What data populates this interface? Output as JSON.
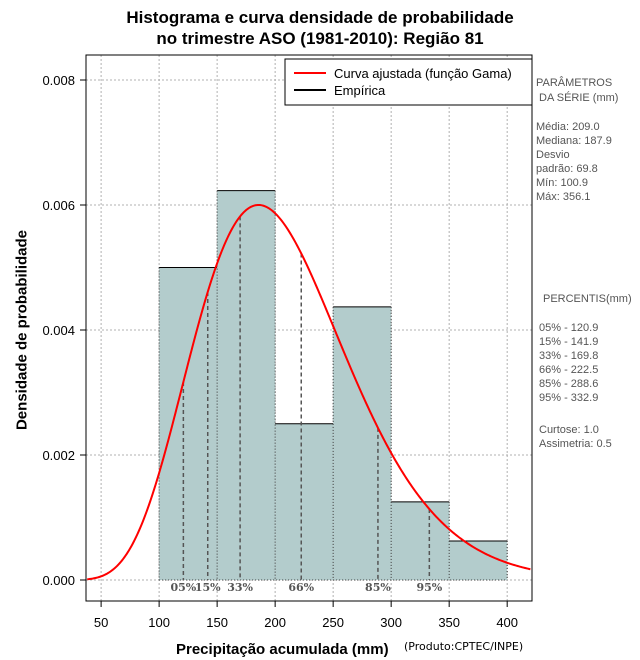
{
  "chart_data": {
    "type": "histogram",
    "title_line1": "Histograma e curva densidade de probabilidade",
    "title_line2": "no trimestre ASO (1981-2010): Região 81",
    "xlabel": "Precipitação acumulada (mm)",
    "ylabel": "Densidade de probabilidade",
    "credit": "(Produto:CPTEC/INPE)",
    "xlim": [
      38,
      420
    ],
    "ylim": [
      0,
      0.0083
    ],
    "x_ticks": [
      50,
      100,
      150,
      200,
      250,
      300,
      350,
      400
    ],
    "y_ticks": [
      0.0,
      0.002,
      0.004,
      0.006,
      0.008
    ],
    "y_tick_labels": [
      "0.000",
      "0.002",
      "0.004",
      "0.006",
      "0.008"
    ],
    "bins": [
      {
        "from": 100,
        "to": 150,
        "density": 0.005
      },
      {
        "from": 150,
        "to": 200,
        "density": 0.00623
      },
      {
        "from": 200,
        "to": 250,
        "density": 0.0025
      },
      {
        "from": 250,
        "to": 300,
        "density": 0.00437
      },
      {
        "from": 300,
        "to": 350,
        "density": 0.00125
      },
      {
        "from": 350,
        "to": 400,
        "density": 0.000625
      }
    ],
    "bar_color": "#b3cccc",
    "curve_color": "#ff0000",
    "gamma_curve": {
      "mean": 209.0,
      "sd": 69.8
    },
    "percentile_lines": [
      {
        "label": "05%",
        "x": 120.9
      },
      {
        "label": "15%",
        "x": 141.9
      },
      {
        "label": "33%",
        "x": 169.8
      },
      {
        "label": "66%",
        "x": 222.5
      },
      {
        "label": "85%",
        "x": 288.6
      },
      {
        "label": "95%",
        "x": 332.9
      }
    ],
    "legend": [
      {
        "label": "Curva ajustada (função Gama)",
        "color": "#ff0000"
      },
      {
        "label": "Empírica",
        "color": "#000000"
      }
    ],
    "legend_position": "top-right"
  },
  "side_panel": {
    "params_title_1": "PARÂMETROS",
    "params_title_2": "DA SÉRIE (mm)",
    "params": [
      "Média:  209.0",
      "Mediana:  187.9",
      "Desvio",
      "padrão:  69.8",
      "Mín:  100.9",
      "Máx:  356.1"
    ],
    "percentis_title": "PERCENTIS(mm)",
    "percentis": [
      "05% -   120.9",
      "15% -   141.9",
      "33% -   169.8",
      "66% -   222.5",
      "85% -   288.6",
      "95% -   332.9"
    ],
    "shape": [
      "Curtose:  1.0",
      "Assimetria:  0.5"
    ]
  }
}
